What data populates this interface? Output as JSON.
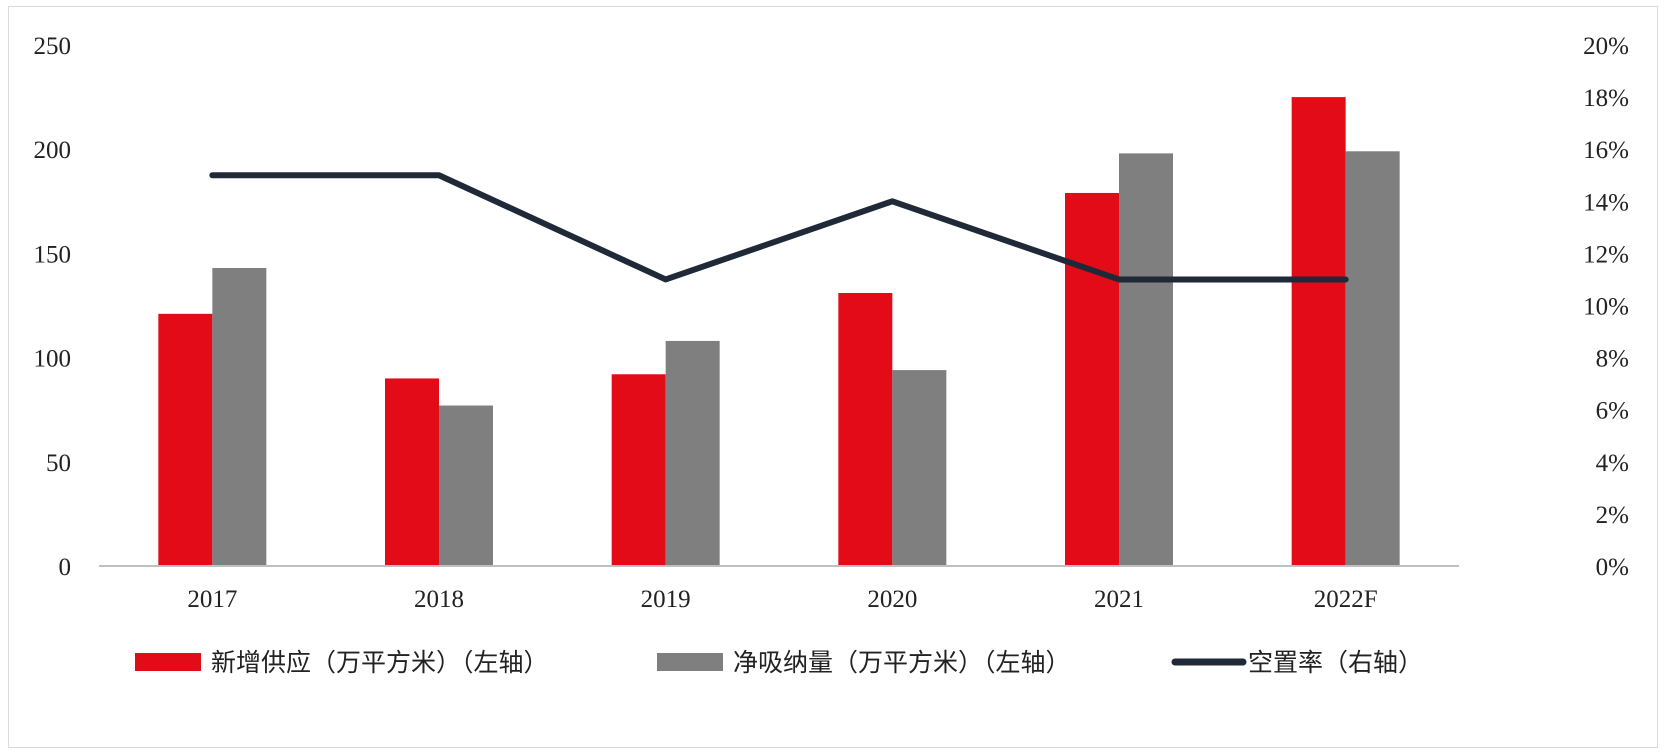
{
  "chart_data": {
    "type": "bar",
    "title": "",
    "categories": [
      "2017",
      "2018",
      "2019",
      "2020",
      "2021",
      "2022F"
    ],
    "series": [
      {
        "name": "新增供应（万平方米）（左轴）",
        "kind": "bar",
        "axis": "left",
        "color": "#e30b17",
        "values": [
          121,
          90,
          92,
          131,
          179,
          225
        ]
      },
      {
        "name": "净吸纳量（万平方米）（左轴）",
        "kind": "bar",
        "axis": "left",
        "color": "#7f7f7f",
        "values": [
          143,
          77,
          108,
          94,
          198,
          199
        ]
      },
      {
        "name": "空置率（右轴）",
        "kind": "line",
        "axis": "right",
        "color": "#1f2937",
        "values": [
          15,
          15,
          11,
          14,
          11,
          11
        ]
      }
    ],
    "y_left": {
      "min": 0,
      "max": 250,
      "step": 50,
      "ticks": [
        "0",
        "50",
        "100",
        "150",
        "200",
        "250"
      ]
    },
    "y_right": {
      "min": 0,
      "max": 20,
      "step": 2,
      "unit": "%",
      "ticks": [
        "0%",
        "2%",
        "4%",
        "6%",
        "8%",
        "10%",
        "12%",
        "14%",
        "16%",
        "18%",
        "20%"
      ]
    },
    "grid": false,
    "legend_position": "bottom"
  }
}
